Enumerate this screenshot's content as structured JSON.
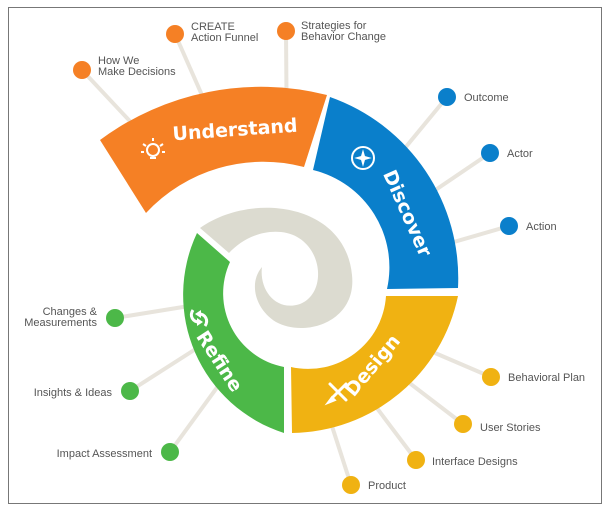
{
  "colors": {
    "understand": "#f58025",
    "discover": "#0a7fcb",
    "design": "#f0b212",
    "refine": "#4cb848",
    "spiral": "#dcdbd0",
    "connector": "#e8e4dc",
    "label": "#555555"
  },
  "stages": {
    "understand": {
      "label": "Understand",
      "icon": "lightbulb-icon",
      "items": [
        "How We Make Decisions",
        "CREATE Action Funnel",
        "Strategies for Behavior Change"
      ]
    },
    "discover": {
      "label": "Discover",
      "icon": "compass-icon",
      "items": [
        "Outcome",
        "Actor",
        "Action"
      ]
    },
    "design": {
      "label": "Design",
      "icon": "tools-icon",
      "items": [
        "Behavioral Plan",
        "User Stories",
        "Interface Designs",
        "Product"
      ]
    },
    "refine": {
      "label": "Refine",
      "icon": "refresh-arrows-icon",
      "items": [
        "Changes & Measurements",
        "Insights & Ideas",
        "Impact Assessment"
      ]
    }
  },
  "item_lines": {
    "how_we": [
      "How We",
      "Make Decisions"
    ],
    "create": [
      "CREATE",
      "Action Funnel"
    ],
    "strategies": [
      "Strategies for",
      "Behavior Change"
    ],
    "changes": [
      "Changes &",
      "Measurements"
    ]
  }
}
